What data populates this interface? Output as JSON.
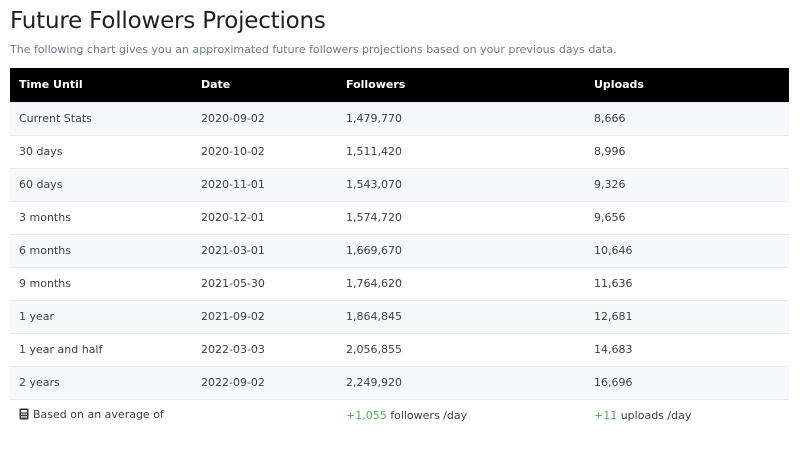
{
  "header": {
    "title": "Future Followers Projections",
    "subtitle": "The following chart gives you an approximated future followers projections based on your previous days data."
  },
  "table": {
    "columns": [
      "Time Until",
      "Date",
      "Followers",
      "Uploads"
    ],
    "rows": [
      {
        "time_until": "Current Stats",
        "date": "2020-09-02",
        "followers": "1,479,770",
        "uploads": "8,666"
      },
      {
        "time_until": "30 days",
        "date": "2020-10-02",
        "followers": "1,511,420",
        "uploads": "8,996"
      },
      {
        "time_until": "60 days",
        "date": "2020-11-01",
        "followers": "1,543,070",
        "uploads": "9,326"
      },
      {
        "time_until": "3 months",
        "date": "2020-12-01",
        "followers": "1,574,720",
        "uploads": "9,656"
      },
      {
        "time_until": "6 months",
        "date": "2021-03-01",
        "followers": "1,669,670",
        "uploads": "10,646"
      },
      {
        "time_until": "9 months",
        "date": "2021-05-30",
        "followers": "1,764,620",
        "uploads": "11,636"
      },
      {
        "time_until": "1 year",
        "date": "2021-09-02",
        "followers": "1,864,845",
        "uploads": "12,681"
      },
      {
        "time_until": "1 year and half",
        "date": "2022-03-03",
        "followers": "2,056,855",
        "uploads": "14,683"
      },
      {
        "time_until": "2 years",
        "date": "2022-09-02",
        "followers": "2,249,920",
        "uploads": "16,696"
      }
    ],
    "footer": {
      "icon": "calculator-icon",
      "label": "Based on an average of",
      "followers_delta": "+1,055",
      "followers_unit": " followers /day",
      "uploads_delta": "+11",
      "uploads_unit": " uploads /day",
      "accent_color": "#4caf50"
    }
  }
}
